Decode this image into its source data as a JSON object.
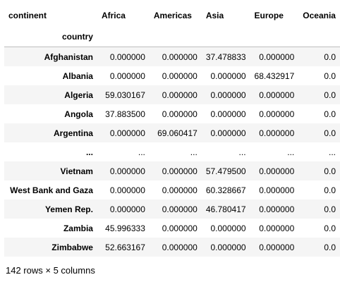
{
  "table": {
    "columns_name": "continent",
    "index_name": "country",
    "columns": [
      "Africa",
      "Americas",
      "Asia",
      "Europe",
      "Oceania"
    ],
    "rows": [
      {
        "country": "Afghanistan",
        "values": [
          "0.000000",
          "0.000000",
          "37.478833",
          "0.000000",
          "0.0"
        ]
      },
      {
        "country": "Albania",
        "values": [
          "0.000000",
          "0.000000",
          "0.000000",
          "68.432917",
          "0.0"
        ]
      },
      {
        "country": "Algeria",
        "values": [
          "59.030167",
          "0.000000",
          "0.000000",
          "0.000000",
          "0.0"
        ]
      },
      {
        "country": "Angola",
        "values": [
          "37.883500",
          "0.000000",
          "0.000000",
          "0.000000",
          "0.0"
        ]
      },
      {
        "country": "Argentina",
        "values": [
          "0.000000",
          "69.060417",
          "0.000000",
          "0.000000",
          "0.0"
        ]
      },
      {
        "country": "...",
        "values": [
          "...",
          "...",
          "...",
          "...",
          "..."
        ]
      },
      {
        "country": "Vietnam",
        "values": [
          "0.000000",
          "0.000000",
          "57.479500",
          "0.000000",
          "0.0"
        ]
      },
      {
        "country": "West Bank and Gaza",
        "values": [
          "0.000000",
          "0.000000",
          "60.328667",
          "0.000000",
          "0.0"
        ]
      },
      {
        "country": "Yemen Rep.",
        "values": [
          "0.000000",
          "0.000000",
          "46.780417",
          "0.000000",
          "0.0"
        ]
      },
      {
        "country": "Zambia",
        "values": [
          "45.996333",
          "0.000000",
          "0.000000",
          "0.000000",
          "0.0"
        ]
      },
      {
        "country": "Zimbabwe",
        "values": [
          "52.663167",
          "0.000000",
          "0.000000",
          "0.000000",
          "0.0"
        ]
      }
    ]
  },
  "footer": {
    "shape_text": "142 rows × 5 columns"
  }
}
